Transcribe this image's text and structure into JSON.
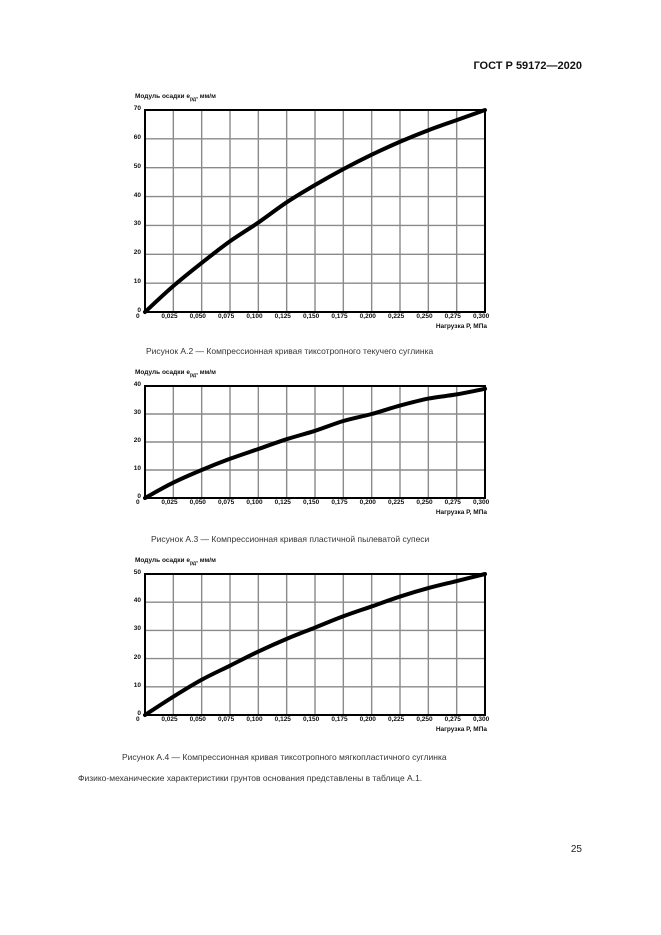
{
  "header": {
    "standard": "ГОСТ Р 59172—2020"
  },
  "page_number": "25",
  "figures": [
    {
      "caption": "Рисунок А.2 — Компрессионная кривая тиксотропного текучего суглинка",
      "ylabel_main": "Модуль осадки e",
      "ylabel_sub": "рд",
      "ylabel_unit": ", мм/м",
      "xlabel": "Нагрузка P, МПа"
    },
    {
      "caption": "Рисунок А.3 — Компрессионная кривая пластичной пылеватой супеси",
      "ylabel_main": "Модуль осадки e",
      "ylabel_sub": "рд",
      "ylabel_unit": ", мм/м",
      "xlabel": "Нагрузка P, МПа"
    },
    {
      "caption": "Рисунок А.4 — Компрессионная кривая тиксотропного мягкопластичного суглинка",
      "ylabel_main": "Модуль осадки e",
      "ylabel_sub": "рд",
      "ylabel_unit": ", мм/м",
      "xlabel": "Нагрузка P, МПа"
    }
  ],
  "body_text": "Физико-механические характеристики грунтов основания представлены в таблице А.1.",
  "chart_data": [
    {
      "type": "line",
      "title": "Рисунок А.2 — Компрессионная кривая тиксотропного текучего суглинка",
      "xlabel": "Нагрузка P, МПа",
      "ylabel": "Модуль осадки e_рд, мм/м",
      "x_tick_labels": [
        "0",
        "0,025",
        "0,050",
        "0,075",
        "0,100",
        "0,125",
        "0,150",
        "0,175",
        "0,200",
        "0,225",
        "0,250",
        "0,275",
        "0,300"
      ],
      "y_tick_labels": [
        "0",
        "10",
        "20",
        "30",
        "40",
        "50",
        "60",
        "70"
      ],
      "x": [
        0,
        0.025,
        0.05,
        0.075,
        0.1,
        0.125,
        0.15,
        0.175,
        0.2,
        0.225,
        0.25,
        0.275,
        0.3
      ],
      "series": [
        {
          "name": "Компрессионная кривая",
          "values": [
            0,
            9,
            17,
            24.5,
            31,
            38,
            44,
            49.5,
            54.5,
            59,
            63,
            66.5,
            70
          ]
        }
      ],
      "xlim": [
        0,
        0.3
      ],
      "ylim": [
        0,
        70
      ],
      "grid": true,
      "legend": "none"
    },
    {
      "type": "line",
      "title": "Рисунок А.3 — Компрессионная кривая пластичной пылеватой супеси",
      "xlabel": "Нагрузка P, МПа",
      "ylabel": "Модуль осадки e_рд, мм/м",
      "x_tick_labels": [
        "0",
        "0,025",
        "0,050",
        "0,075",
        "0,100",
        "0,125",
        "0,150",
        "0,175",
        "0,200",
        "0,225",
        "0,250",
        "0,275",
        "0,300"
      ],
      "y_tick_labels": [
        "0",
        "10",
        "20",
        "30",
        "40"
      ],
      "x": [
        0,
        0.025,
        0.05,
        0.075,
        0.1,
        0.125,
        0.15,
        0.175,
        0.2,
        0.225,
        0.25,
        0.275,
        0.3
      ],
      "series": [
        {
          "name": "Компрессионная кривая",
          "values": [
            0,
            5.5,
            10,
            14,
            17.5,
            21,
            24,
            27.5,
            30,
            33,
            35.5,
            37,
            39
          ]
        }
      ],
      "xlim": [
        0,
        0.3
      ],
      "ylim": [
        0,
        40
      ],
      "grid": true,
      "legend": "none"
    },
    {
      "type": "line",
      "title": "Рисунок А.4 — Компрессионная кривая тиксотропного мягкопластичного суглинка",
      "xlabel": "Нагрузка P, МПа",
      "ylabel": "Модуль осадки e_рд, мм/м",
      "x_tick_labels": [
        "0",
        "0,025",
        "0,050",
        "0,075",
        "0,100",
        "0,125",
        "0,150",
        "0,175",
        "0,200",
        "0,225",
        "0,250",
        "0,275",
        "0,300"
      ],
      "y_tick_labels": [
        "0",
        "10",
        "20",
        "30",
        "40",
        "50"
      ],
      "x": [
        0,
        0.025,
        0.05,
        0.075,
        0.1,
        0.125,
        0.15,
        0.175,
        0.2,
        0.225,
        0.25,
        0.275,
        0.3
      ],
      "series": [
        {
          "name": "Компрессионная кривая",
          "values": [
            0,
            6.5,
            12.5,
            17.5,
            22.5,
            27,
            31,
            35,
            38.5,
            42,
            45,
            47.5,
            50
          ]
        }
      ],
      "xlim": [
        0,
        0.3
      ],
      "ylim": [
        0,
        50
      ],
      "grid": true,
      "legend": "none"
    }
  ]
}
